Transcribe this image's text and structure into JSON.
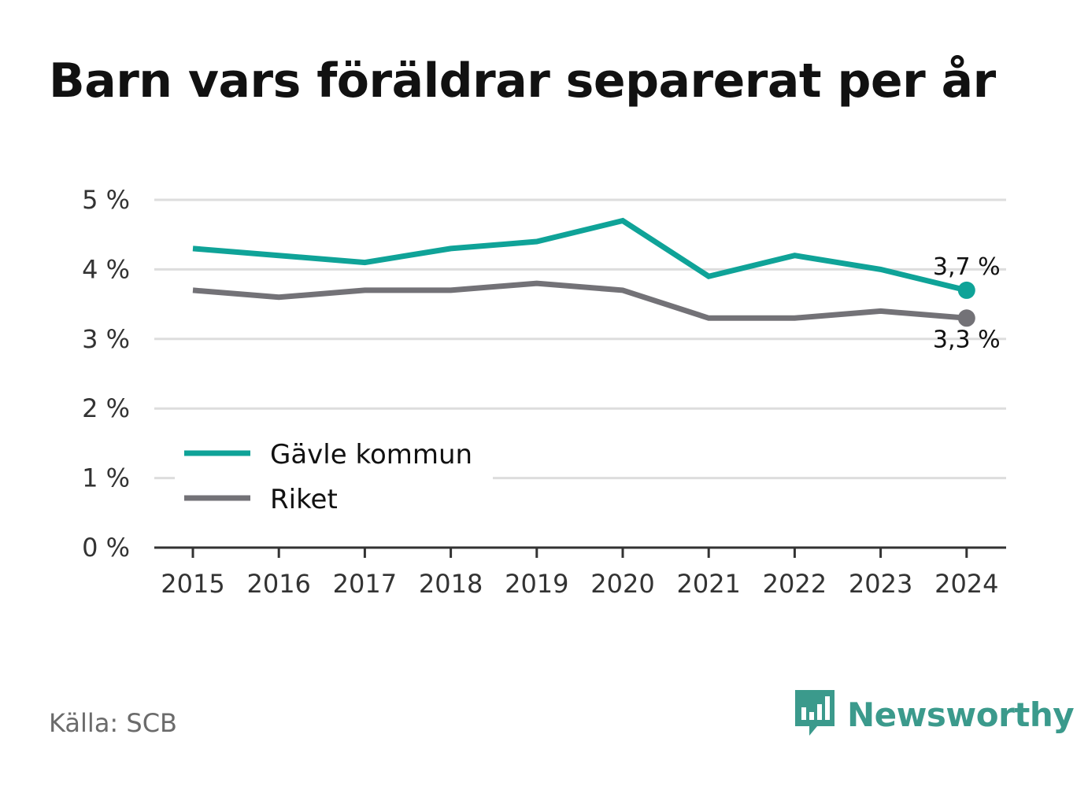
{
  "title": "Barn vars föräldrar separerat per år",
  "source": "Källa: SCB",
  "brand": "Newsworthy",
  "colors": {
    "primary": "#0fa398",
    "secondary": "#737277",
    "grid": "#dddddd",
    "axis": "#333333",
    "brand": "#3b9a8c"
  },
  "chart_data": {
    "type": "line",
    "title": "Barn vars föräldrar separerat per år",
    "x": [
      "2015",
      "2016",
      "2017",
      "2018",
      "2019",
      "2020",
      "2021",
      "2022",
      "2023",
      "2024"
    ],
    "series": [
      {
        "name": "Gävle kommun",
        "color": "#0fa398",
        "values": [
          4.3,
          4.2,
          4.1,
          4.3,
          4.4,
          4.7,
          3.9,
          4.2,
          4.0,
          3.7
        ]
      },
      {
        "name": "Riket",
        "color": "#737277",
        "values": [
          3.7,
          3.6,
          3.7,
          3.7,
          3.8,
          3.7,
          3.3,
          3.3,
          3.4,
          3.3
        ]
      }
    ],
    "yticks": [
      "0 %",
      "1 %",
      "2 %",
      "3 %",
      "4 %",
      "5 %"
    ],
    "ylim": [
      0,
      5
    ],
    "end_labels": [
      "3,7 %",
      "3,3 %"
    ],
    "grid": true,
    "legend": "bottom-left"
  }
}
